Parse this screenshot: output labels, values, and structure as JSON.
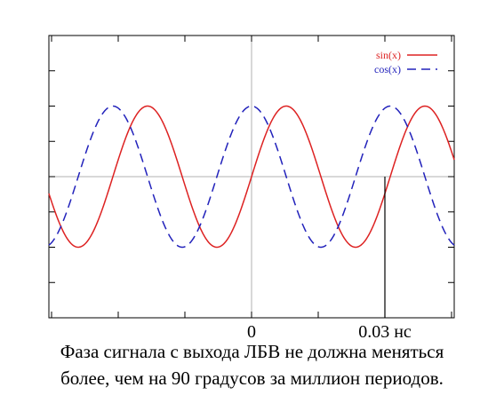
{
  "chart_data": {
    "type": "line",
    "xlim": [
      -0.038,
      0.038
    ],
    "ylim": [
      -2,
      2
    ],
    "grid": "zero-lines",
    "legend_position": "top-right",
    "period": 0.026,
    "series": [
      {
        "name": "sin(x)",
        "function": "sin",
        "color": "#dd2222",
        "style": "solid"
      },
      {
        "name": "cos(x)",
        "function": "cos",
        "color": "#2222bb",
        "style": "dashed"
      }
    ],
    "x_tick_labels": [
      {
        "x": 0,
        "label": "0"
      },
      {
        "x": 0.025,
        "label": "0.03 нс"
      }
    ],
    "marker_line": {
      "x": 0.025
    }
  },
  "caption": {
    "line1": "Фаза сигнала с выхода ЛБВ не должна меняться",
    "line2": "более, чем на 90 градусов за миллион периодов."
  }
}
